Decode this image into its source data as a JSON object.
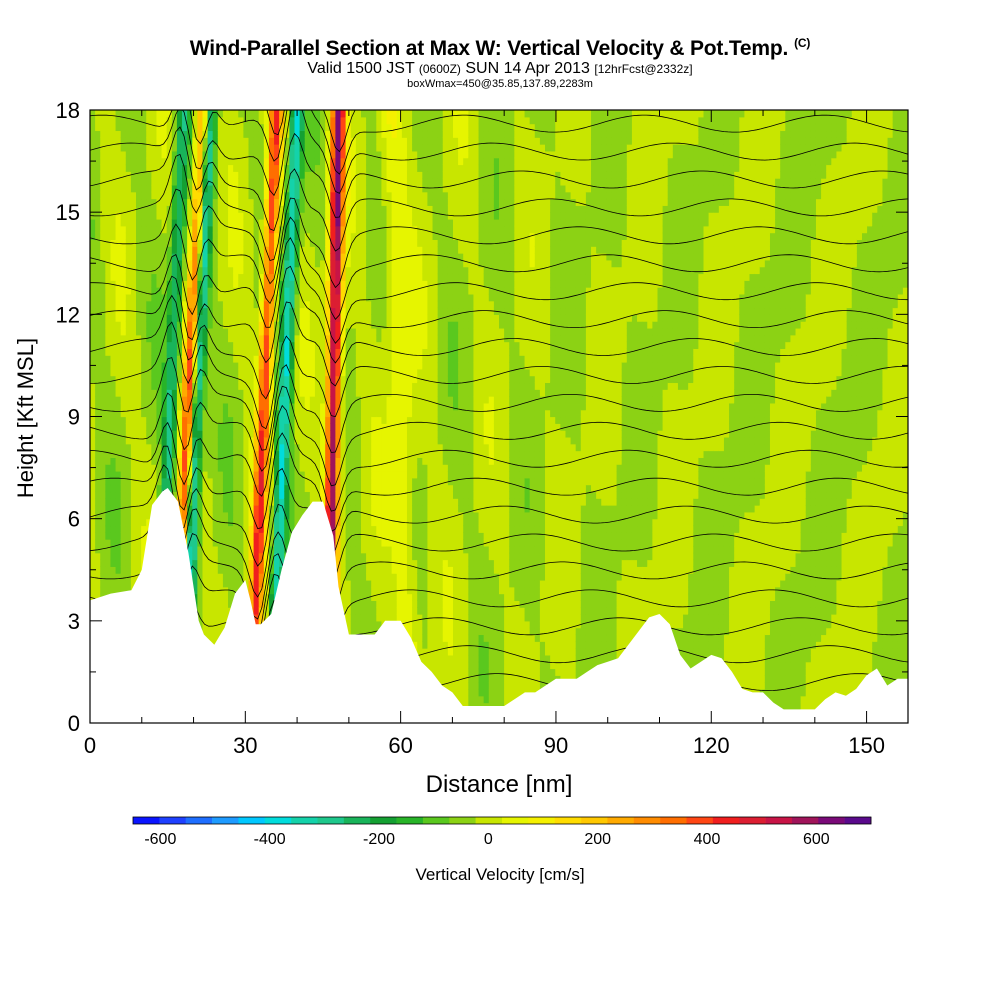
{
  "header": {
    "title": "Wind-Parallel Section at Max W: Vertical Velocity & Pot.Temp.",
    "copyright": "(C)",
    "valid_prefix": "Valid 1500 JST",
    "valid_zulu": "(0600Z)",
    "valid_date": "SUN 14 Apr 2013",
    "forecast": "[12hrFcst@2332z]",
    "box_info": "boxWmax=450@35.85,137.89,2283m"
  },
  "colors": {
    "neg_600": "#0a14ff",
    "pos_600": "#5a0a8c",
    "zero": "#e6f500",
    "terrain": "#ffffff"
  },
  "chart_data": {
    "type": "heatmap",
    "xlabel": "Distance [nm]",
    "ylabel": "Height [Kft MSL]",
    "xlim": [
      0,
      158
    ],
    "ylim": [
      0,
      18
    ],
    "x_ticks": [
      0,
      30,
      60,
      90,
      120,
      150
    ],
    "y_ticks": [
      0,
      3,
      6,
      9,
      12,
      15,
      18
    ],
    "colorbar": {
      "label": "Vertical Velocity [cm/s]",
      "tick_labels": [
        -600,
        -400,
        -200,
        0,
        200,
        400,
        600
      ],
      "levels": [
        -650,
        -600,
        -550,
        -500,
        -450,
        -400,
        -350,
        -300,
        -250,
        -200,
        -150,
        -100,
        -50,
        0,
        50,
        100,
        150,
        200,
        250,
        300,
        350,
        400,
        450,
        500,
        550,
        600,
        650,
        700
      ],
      "colors": [
        "#0a14ff",
        "#1e40ff",
        "#1e6eff",
        "#1e9bff",
        "#00c8ff",
        "#00dcdc",
        "#14d2aa",
        "#1ec88c",
        "#19b45a",
        "#14a032",
        "#28b428",
        "#5ac81e",
        "#8cd214",
        "#c8e600",
        "#e6f500",
        "#f5f000",
        "#ffdc00",
        "#ffc800",
        "#ffaa00",
        "#ff8c00",
        "#ff6e00",
        "#ff4614",
        "#f01e1e",
        "#dc1e32",
        "#c81446",
        "#a0145a",
        "#7a0a78",
        "#5a0a8c"
      ]
    },
    "vertical_velocity_features": [
      {
        "kind": "updraft",
        "x_bottom": 16,
        "x_top": 22,
        "peak_cm_s": 450
      },
      {
        "kind": "downdraft",
        "x_bottom": 18,
        "x_top": 23,
        "peak_cm_s": -400
      },
      {
        "kind": "updraft",
        "x_bottom": 31,
        "x_top": 36,
        "peak_cm_s": 450
      },
      {
        "kind": "downdraft",
        "x_bottom": 35,
        "x_top": 40,
        "peak_cm_s": -350
      },
      {
        "kind": "updraft",
        "x_bottom": 46,
        "x_top": 48,
        "peak_cm_s": 650
      },
      {
        "kind": "downdraft",
        "x_bottom": 13,
        "x_top": 18,
        "peak_cm_s": -250
      },
      {
        "kind": "weak_updraft",
        "x_bottom": 62,
        "x_top": 58,
        "peak_cm_s": 100
      }
    ],
    "terrain_height_kft": {
      "x": [
        0,
        4,
        8,
        10,
        12,
        14,
        15,
        17,
        19,
        21,
        22,
        24,
        26,
        28,
        30,
        31,
        32,
        33,
        35,
        37,
        39,
        41,
        43,
        45,
        47,
        48,
        50,
        52,
        55,
        57,
        60,
        62,
        64,
        66,
        68,
        70,
        72,
        74,
        76,
        78,
        80,
        82,
        84,
        86,
        88,
        90,
        92,
        94,
        96,
        98,
        100,
        102,
        104,
        106,
        108,
        110,
        112,
        114,
        116,
        118,
        120,
        122,
        124,
        126,
        128,
        130,
        132,
        134,
        136,
        138,
        140,
        142,
        144,
        146,
        148,
        150,
        152,
        154,
        156,
        158
      ],
      "kft": [
        3.6,
        3.8,
        3.9,
        4.5,
        6.4,
        6.8,
        6.9,
        6.5,
        5.0,
        3.0,
        2.6,
        2.3,
        2.8,
        3.8,
        4.2,
        3.6,
        2.9,
        2.9,
        3.2,
        4.5,
        5.6,
        6.1,
        6.5,
        6.5,
        5.5,
        4.0,
        2.6,
        2.6,
        2.6,
        3.0,
        3.0,
        2.5,
        1.8,
        1.5,
        1.1,
        0.9,
        0.5,
        0.5,
        0.5,
        0.5,
        0.5,
        0.7,
        0.9,
        0.9,
        1.1,
        1.3,
        1.3,
        1.3,
        1.5,
        1.7,
        1.8,
        1.9,
        2.3,
        2.7,
        3.1,
        3.2,
        2.9,
        2.0,
        1.6,
        1.8,
        2.0,
        1.9,
        1.5,
        1.0,
        0.9,
        0.9,
        0.6,
        0.4,
        0.4,
        0.4,
        0.4,
        0.7,
        0.9,
        0.8,
        1.0,
        1.4,
        1.6,
        1.1,
        1.3,
        1.3
      ]
    },
    "annotations": [
      "isentropes of potential temperature (thin black contours)"
    ]
  }
}
